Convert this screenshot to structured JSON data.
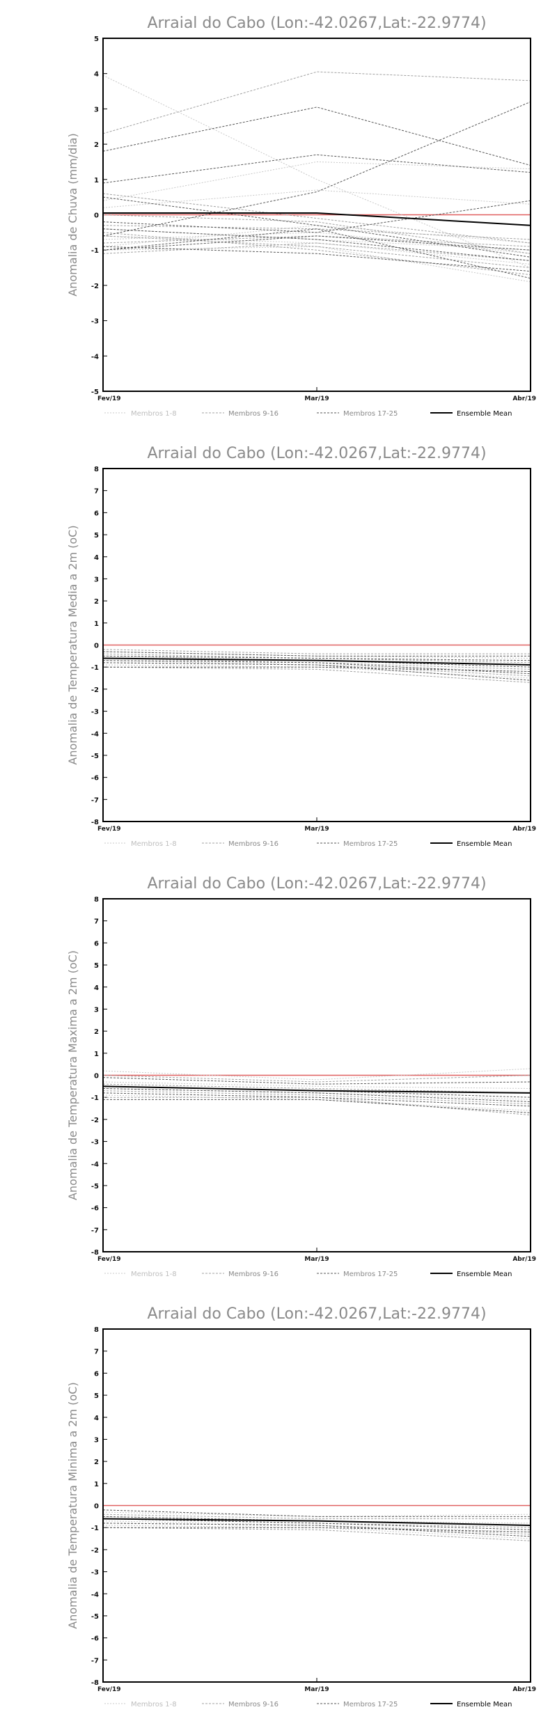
{
  "legend": [
    {
      "label": "Membros 1-8",
      "color": "#c8c8c8",
      "dash": "2,2",
      "width": 1
    },
    {
      "label": "Membros 9-16",
      "color": "#a0a0a0",
      "dash": "3,2",
      "width": 1
    },
    {
      "label": "Membros 17-25",
      "color": "#555555",
      "dash": "3,2",
      "width": 1
    },
    {
      "label": "Ensemble Mean",
      "color": "#000000",
      "dash": "",
      "width": 2
    }
  ],
  "chart_data": [
    {
      "type": "line",
      "title": "Arraial do Cabo (Lon:-42.0267,Lat:-22.9774)",
      "ylabel": "Anomalia de Chuva (mm/dia)",
      "categories": [
        "Fev/19",
        "Mar/19",
        "Abr/19"
      ],
      "ylim": [
        -5,
        5
      ],
      "yticks": [
        -5,
        -4,
        -3,
        -2,
        -1,
        0,
        1,
        2,
        3,
        4,
        5
      ],
      "reference_line": {
        "value": 0,
        "color": "#e06060"
      },
      "series": [
        {
          "group": "Membros 1-8",
          "values": [
            3.95,
            1.0,
            -1.5
          ]
        },
        {
          "group": "Membros 1-8",
          "values": [
            0.4,
            1.5,
            1.3
          ]
        },
        {
          "group": "Membros 1-8",
          "values": [
            0.2,
            0.7,
            0.3
          ]
        },
        {
          "group": "Membros 1-8",
          "values": [
            -0.4,
            -0.7,
            -1.0
          ]
        },
        {
          "group": "Membros 1-8",
          "values": [
            -0.6,
            -0.8,
            -1.4
          ]
        },
        {
          "group": "Membros 1-8",
          "values": [
            -0.9,
            -0.3,
            -0.8
          ]
        },
        {
          "group": "Membros 1-8",
          "values": [
            -1.0,
            -0.9,
            -1.9
          ]
        },
        {
          "group": "Membros 1-8",
          "values": [
            -0.7,
            -0.5,
            -1.1
          ]
        },
        {
          "group": "Membros 9-16",
          "values": [
            2.3,
            4.05,
            3.8
          ]
        },
        {
          "group": "Membros 9-16",
          "values": [
            0.6,
            -0.1,
            -0.8
          ]
        },
        {
          "group": "Membros 9-16",
          "values": [
            -0.3,
            -0.4,
            -0.7
          ]
        },
        {
          "group": "Membros 9-16",
          "values": [
            -0.5,
            -1.0,
            -1.7
          ]
        },
        {
          "group": "Membros 9-16",
          "values": [
            -0.8,
            -0.6,
            -0.9
          ]
        },
        {
          "group": "Membros 9-16",
          "values": [
            -1.1,
            -0.8,
            -1.3
          ]
        },
        {
          "group": "Membros 9-16",
          "values": [
            0.0,
            -0.2,
            -1.1
          ]
        },
        {
          "group": "Membros 9-16",
          "values": [
            -0.6,
            -0.9,
            -1.5
          ]
        },
        {
          "group": "Membros 17-25",
          "values": [
            1.8,
            3.05,
            1.4
          ]
        },
        {
          "group": "Membros 17-25",
          "values": [
            0.9,
            1.7,
            1.2
          ]
        },
        {
          "group": "Membros 17-25",
          "values": [
            -0.6,
            0.65,
            3.2
          ]
        },
        {
          "group": "Membros 17-25",
          "values": [
            0.5,
            -0.3,
            -1.2
          ]
        },
        {
          "group": "Membros 17-25",
          "values": [
            -0.2,
            -0.5,
            0.4
          ]
        },
        {
          "group": "Membros 17-25",
          "values": [
            -1.0,
            -0.6,
            -1.0
          ]
        },
        {
          "group": "Membros 17-25",
          "values": [
            -0.9,
            -1.1,
            -1.6
          ]
        },
        {
          "group": "Membros 17-25",
          "values": [
            -0.4,
            -0.7,
            -1.3
          ]
        },
        {
          "group": "Membros 17-25",
          "values": [
            -1.0,
            -0.4,
            -1.8
          ]
        },
        {
          "group": "Ensemble Mean",
          "values": [
            0.05,
            0.05,
            -0.3
          ]
        }
      ]
    },
    {
      "type": "line",
      "title": "Arraial do Cabo (Lon:-42.0267,Lat:-22.9774)",
      "ylabel": "Anomalia de Temperatura Media a 2m (oC)",
      "categories": [
        "Fev/19",
        "Mar/19",
        "Abr/19"
      ],
      "ylim": [
        -8,
        8
      ],
      "yticks": [
        -8,
        -7,
        -6,
        -5,
        -4,
        -3,
        -2,
        -1,
        0,
        1,
        2,
        3,
        4,
        5,
        6,
        7,
        8
      ],
      "reference_line": {
        "value": 0,
        "color": "#e06060"
      },
      "series": [
        {
          "group": "Membros 1-8",
          "values": [
            -0.3,
            -0.5,
            -0.6
          ]
        },
        {
          "group": "Membros 1-8",
          "values": [
            -0.5,
            -0.7,
            -0.9
          ]
        },
        {
          "group": "Membros 1-8",
          "values": [
            -0.7,
            -0.9,
            -1.2
          ]
        },
        {
          "group": "Membros 1-8",
          "values": [
            -0.9,
            -1.0,
            -1.5
          ]
        },
        {
          "group": "Membros 9-16",
          "values": [
            -0.2,
            -0.4,
            -0.4
          ]
        },
        {
          "group": "Membros 9-16",
          "values": [
            -0.4,
            -0.6,
            -0.8
          ]
        },
        {
          "group": "Membros 9-16",
          "values": [
            -0.6,
            -0.8,
            -1.1
          ]
        },
        {
          "group": "Membros 9-16",
          "values": [
            -0.8,
            -0.9,
            -1.4
          ]
        },
        {
          "group": "Membros 9-16",
          "values": [
            -1.0,
            -1.1,
            -1.7
          ]
        },
        {
          "group": "Membros 17-25",
          "values": [
            -0.3,
            -0.5,
            -0.5
          ]
        },
        {
          "group": "Membros 17-25",
          "values": [
            -0.5,
            -0.6,
            -0.7
          ]
        },
        {
          "group": "Membros 17-25",
          "values": [
            -0.6,
            -0.7,
            -1.0
          ]
        },
        {
          "group": "Membros 17-25",
          "values": [
            -0.7,
            -0.8,
            -1.3
          ]
        },
        {
          "group": "Membros 17-25",
          "values": [
            -0.8,
            -0.9,
            -1.6
          ]
        },
        {
          "group": "Membros 17-25",
          "values": [
            -1.0,
            -1.0,
            -1.2
          ]
        },
        {
          "group": "Ensemble Mean",
          "values": [
            -0.6,
            -0.7,
            -0.9
          ]
        }
      ]
    },
    {
      "type": "line",
      "title": "Arraial do Cabo (Lon:-42.0267,Lat:-22.9774)",
      "ylabel": "Anomalia de Temperatura Maxima a 2m (oC)",
      "categories": [
        "Fev/19",
        "Mar/19",
        "Abr/19"
      ],
      "ylim": [
        -8,
        8
      ],
      "yticks": [
        -8,
        -7,
        -6,
        -5,
        -4,
        -3,
        -2,
        -1,
        0,
        1,
        2,
        3,
        4,
        5,
        6,
        7,
        8
      ],
      "reference_line": {
        "value": 0,
        "color": "#e06060"
      },
      "series": [
        {
          "group": "Membros 1-8",
          "values": [
            0.2,
            -0.2,
            0.3
          ]
        },
        {
          "group": "Membros 1-8",
          "values": [
            -0.3,
            -0.5,
            -0.6
          ]
        },
        {
          "group": "Membros 1-8",
          "values": [
            -0.6,
            -0.8,
            -1.1
          ]
        },
        {
          "group": "Membros 1-8",
          "values": [
            -0.9,
            -1.1,
            -1.6
          ]
        },
        {
          "group": "Membros 9-16",
          "values": [
            0.0,
            -0.3,
            0.0
          ]
        },
        {
          "group": "Membros 9-16",
          "values": [
            -0.4,
            -0.6,
            -0.8
          ]
        },
        {
          "group": "Membros 9-16",
          "values": [
            -0.7,
            -0.9,
            -1.3
          ]
        },
        {
          "group": "Membros 9-16",
          "values": [
            -1.0,
            -1.0,
            -1.8
          ]
        },
        {
          "group": "Membros 17-25",
          "values": [
            -0.1,
            -0.4,
            -0.3
          ]
        },
        {
          "group": "Membros 17-25",
          "values": [
            -0.5,
            -0.7,
            -1.0
          ]
        },
        {
          "group": "Membros 17-25",
          "values": [
            -0.6,
            -0.8,
            -1.2
          ]
        },
        {
          "group": "Membros 17-25",
          "values": [
            -0.8,
            -1.0,
            -1.4
          ]
        },
        {
          "group": "Membros 17-25",
          "values": [
            -1.1,
            -1.1,
            -1.7
          ]
        },
        {
          "group": "Ensemble Mean",
          "values": [
            -0.5,
            -0.7,
            -0.8
          ]
        }
      ]
    },
    {
      "type": "line",
      "title": "Arraial do Cabo (Lon:-42.0267,Lat:-22.9774)",
      "ylabel": "Anomalia de Temperatura Minima a 2m (oC)",
      "categories": [
        "Fev/19",
        "Mar/19",
        "Abr/19"
      ],
      "ylim": [
        -8,
        8
      ],
      "yticks": [
        -8,
        -7,
        -6,
        -5,
        -4,
        -3,
        -2,
        -1,
        0,
        1,
        2,
        3,
        4,
        5,
        6,
        7,
        8
      ],
      "reference_line": {
        "value": 0,
        "color": "#e06060"
      },
      "series": [
        {
          "group": "Membros 1-8",
          "values": [
            -0.3,
            -0.5,
            -0.4
          ]
        },
        {
          "group": "Membros 1-8",
          "values": [
            -0.5,
            -0.7,
            -0.8
          ]
        },
        {
          "group": "Membros 1-8",
          "values": [
            -0.7,
            -0.9,
            -1.2
          ]
        },
        {
          "group": "Membros 1-8",
          "values": [
            -0.9,
            -1.0,
            -1.5
          ]
        },
        {
          "group": "Membros 9-16",
          "values": [
            -0.4,
            -0.6,
            -0.6
          ]
        },
        {
          "group": "Membros 9-16",
          "values": [
            -0.6,
            -0.8,
            -1.0
          ]
        },
        {
          "group": "Membros 9-16",
          "values": [
            -0.8,
            -0.9,
            -1.3
          ]
        },
        {
          "group": "Membros 9-16",
          "values": [
            -1.0,
            -1.1,
            -1.6
          ]
        },
        {
          "group": "Membros 17-25",
          "values": [
            -0.2,
            -0.5,
            -0.5
          ]
        },
        {
          "group": "Membros 17-25",
          "values": [
            -0.5,
            -0.7,
            -0.9
          ]
        },
        {
          "group": "Membros 17-25",
          "values": [
            -0.6,
            -0.8,
            -1.1
          ]
        },
        {
          "group": "Membros 17-25",
          "values": [
            -0.8,
            -0.9,
            -1.4
          ]
        },
        {
          "group": "Membros 17-25",
          "values": [
            -1.0,
            -1.0,
            -1.2
          ]
        },
        {
          "group": "Ensemble Mean",
          "values": [
            -0.6,
            -0.7,
            -0.9
          ]
        }
      ]
    }
  ]
}
